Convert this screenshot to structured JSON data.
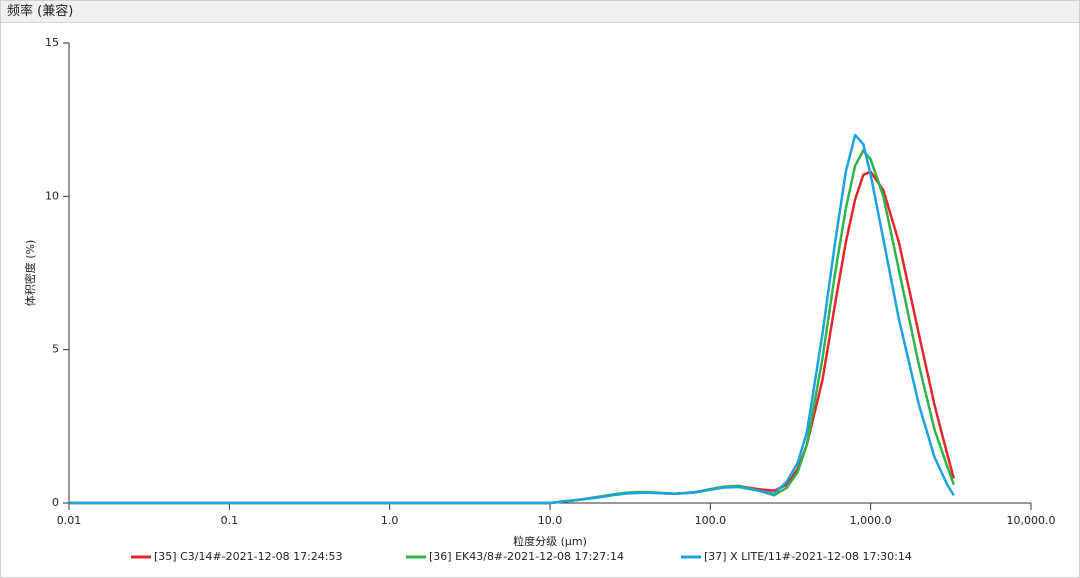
{
  "chart_data": {
    "type": "line",
    "title": "频率 (兼容)",
    "x_label": "粒度分级 (μm)",
    "y_label": "体积密度 (%)",
    "x_log": true,
    "xlim": [
      0.01,
      10000
    ],
    "ylim": [
      0,
      15
    ],
    "xticks": [
      0.01,
      0.1,
      {
        "value": 1,
        "label": "1.0"
      },
      {
        "value": 10,
        "label": "10.0"
      },
      {
        "value": 100,
        "label": "100.0"
      },
      {
        "value": 1000,
        "label": "1,000.0"
      },
      {
        "value": 10000,
        "label": "10,000.0"
      }
    ],
    "yticks": [
      0,
      5,
      10,
      15
    ],
    "grid": false,
    "legend": "bottom",
    "x": [
      0.01,
      0.02,
      0.05,
      0.1,
      0.2,
      0.5,
      1,
      2,
      5,
      10,
      12,
      15,
      20,
      25,
      30,
      40,
      50,
      60,
      80,
      100,
      120,
      150,
      200,
      250,
      300,
      350,
      400,
      500,
      600,
      700,
      800,
      900,
      1000,
      1200,
      1500,
      2000,
      2500,
      3000,
      3300
    ],
    "series": [
      {
        "name": "[35] C3/14#-2021-12-08 17:24:53",
        "color": "#e8262a",
        "values": [
          0,
          0,
          0,
          0,
          0,
          0,
          0,
          0,
          0,
          0,
          0.05,
          0.1,
          0.2,
          0.27,
          0.32,
          0.35,
          0.32,
          0.3,
          0.35,
          0.45,
          0.52,
          0.55,
          0.45,
          0.4,
          0.6,
          1.1,
          1.9,
          4.0,
          6.5,
          8.5,
          9.9,
          10.7,
          10.8,
          10.2,
          8.5,
          5.5,
          3.2,
          1.6,
          0.8
        ]
      },
      {
        "name": "[36] EK43/8#-2021-12-08 17:27:14",
        "color": "#2fb34a",
        "values": [
          0,
          0,
          0,
          0,
          0,
          0,
          0,
          0,
          0,
          0,
          0.05,
          0.1,
          0.2,
          0.28,
          0.34,
          0.36,
          0.33,
          0.3,
          0.35,
          0.45,
          0.53,
          0.56,
          0.4,
          0.25,
          0.5,
          1.0,
          1.9,
          4.7,
          7.5,
          9.6,
          11.0,
          11.5,
          11.2,
          10.0,
          7.6,
          4.5,
          2.4,
          1.2,
          0.6
        ]
      },
      {
        "name": "[37] X LITE/11#-2021-12-08 17:30:14",
        "color": "#1aa3e0",
        "values": [
          0,
          0,
          0,
          0,
          0,
          0,
          0,
          0,
          0,
          0,
          0.05,
          0.1,
          0.18,
          0.26,
          0.31,
          0.34,
          0.32,
          0.3,
          0.34,
          0.43,
          0.5,
          0.52,
          0.4,
          0.3,
          0.7,
          1.3,
          2.3,
          5.5,
          8.5,
          10.8,
          12.0,
          11.7,
          10.7,
          8.6,
          6.0,
          3.2,
          1.5,
          0.6,
          0.25
        ]
      }
    ]
  }
}
